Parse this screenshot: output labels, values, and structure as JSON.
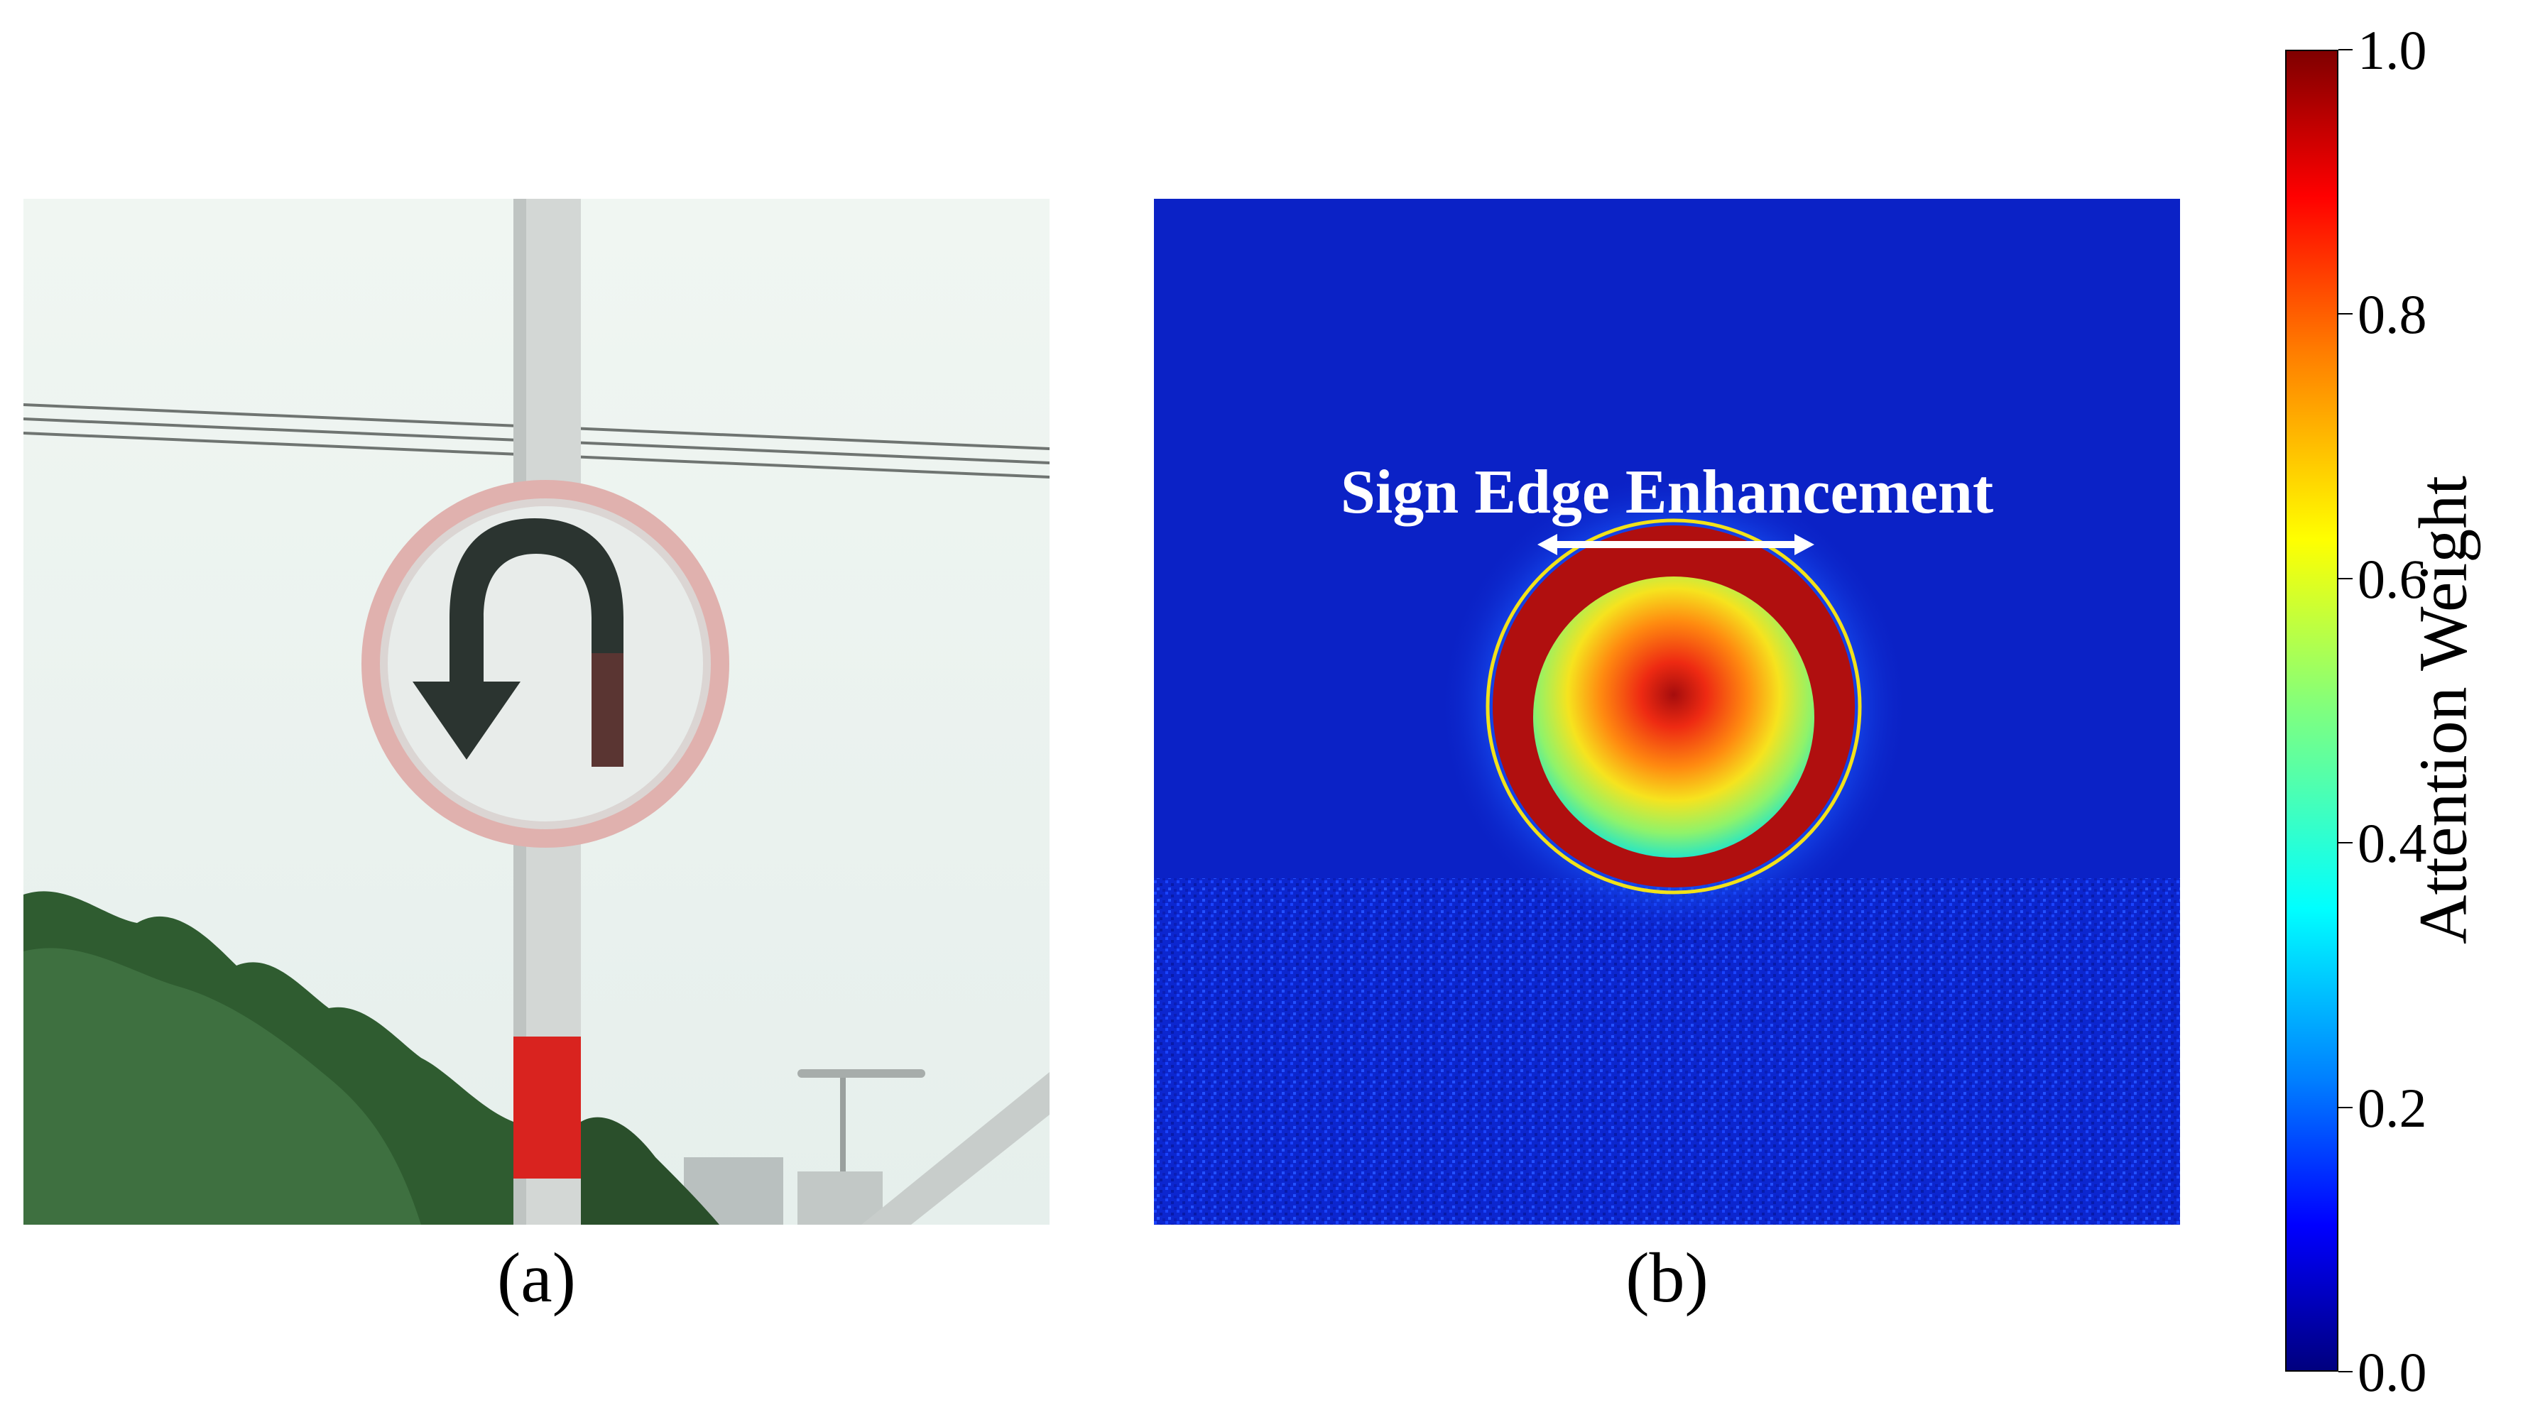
{
  "panels": [
    {
      "caption": "(a)",
      "content": "photo-traffic-sign"
    },
    {
      "caption": "(b)",
      "content": "attention-heatmap"
    }
  ],
  "annotation": {
    "text": "Sign Edge Enhancement"
  },
  "colorbar": {
    "label": "Attention Weight",
    "ticks": [
      "0.0",
      "0.2",
      "0.4",
      "0.6",
      "0.8",
      "1.0"
    ],
    "min": 0.0,
    "max": 1.0,
    "colormap": "jet"
  },
  "colors": {
    "sky": "#eef4ef",
    "pole": "#d2d6d4",
    "pole_band": "#d9231f",
    "sign_face": "#e9ecea",
    "sign_border": "#e4b5b3",
    "arrow": "#2c3530",
    "foliage": "#2e5a2e",
    "heatmap_bg": "#0b22c9",
    "heatmap_ring": "#b00f0f"
  }
}
